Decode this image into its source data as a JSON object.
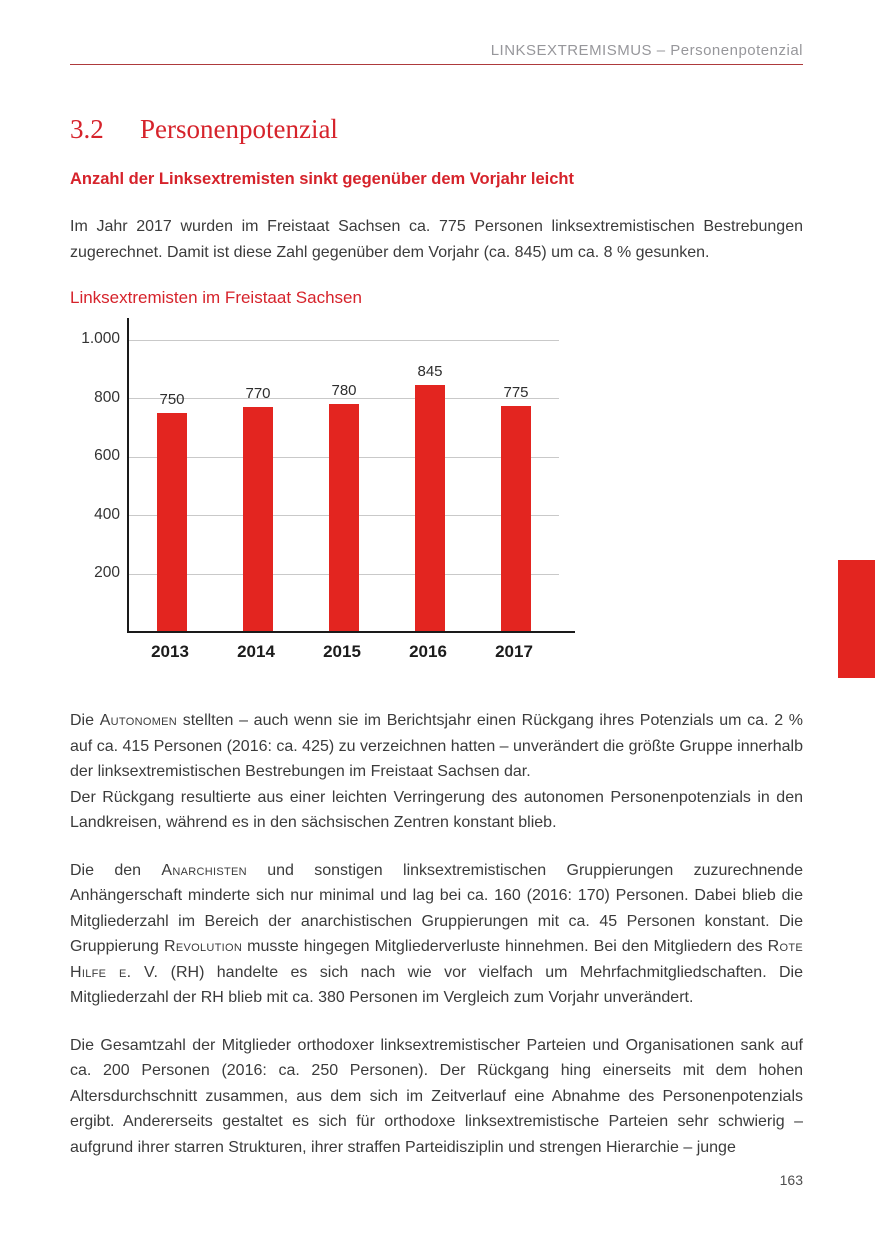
{
  "page": {
    "running_title": "LINKSEXTREMISMUS – Personenpotenzial",
    "section_number": "3.2",
    "section_title": "Personenpotenzial",
    "subheading": "Anzahl der Linksextremisten sinkt gegenüber dem Vorjahr leicht",
    "intro_paragraph": "Im Jahr 2017 wurden im Freistaat Sachsen ca. 775 Personen linksextremistischen Bestrebungen zugerechnet. Damit ist diese Zahl gegenüber dem Vorjahr (ca. 845) um ca. 8 % gesunken.",
    "page_number": "163"
  },
  "chart_data": {
    "type": "bar",
    "title": "Linksextremisten im Freistaat Sachsen",
    "categories": [
      "2013",
      "2014",
      "2015",
      "2016",
      "2017"
    ],
    "values": [
      750,
      770,
      780,
      845,
      775
    ],
    "bar_labels": [
      "750",
      "770",
      "780",
      "845",
      "775"
    ],
    "xlabel": "",
    "ylabel": "",
    "ylim": [
      0,
      1075
    ],
    "y_ticks": [
      {
        "value": 200,
        "label": "200"
      },
      {
        "value": 400,
        "label": "400"
      },
      {
        "value": 600,
        "label": "600"
      },
      {
        "value": 800,
        "label": "800"
      },
      {
        "value": 1000,
        "label": "1.000"
      }
    ],
    "grid": true,
    "legend": "none",
    "bar_color": "#e32520"
  },
  "body_blocks": [
    {
      "paragraphs": [
        [
          {
            "t": "Die "
          },
          {
            "t": "Autonomen",
            "sc": true
          },
          {
            "t": " stellten – auch wenn sie im Berichtsjahr einen Rückgang ihres Potenzials um ca. 2 % auf ca. 415 Personen (2016: ca. 425) zu verzeichnen hatten – unverändert die größte Gruppe innerhalb der linksextremistischen Bestrebungen im Freistaat Sachsen dar."
          }
        ],
        [
          {
            "t": "Der Rückgang resultierte aus einer leichten Verringerung des autonomen Personenpotenzials in den Landkreisen, während es in den sächsischen Zentren konstant blieb."
          }
        ]
      ]
    },
    {
      "paragraphs": [
        [
          {
            "t": "Die den "
          },
          {
            "t": "Anarchisten",
            "sc": true
          },
          {
            "t": " und sonstigen linksextremistischen Gruppierungen zuzurechnende Anhängerschaft minderte sich nur minimal und lag bei ca. 160 (2016: 170) Personen. Dabei blieb die Mitgliederzahl im Bereich der anarchistischen Gruppierungen mit ca. 45 Personen konstant. Die Gruppierung "
          },
          {
            "t": "Revolution",
            "sc": true
          },
          {
            "t": " musste hingegen Mitgliederverluste hinnehmen. Bei den Mitgliedern des "
          },
          {
            "t": "Rote Hilfe e. V.",
            "sc": true
          },
          {
            "t": " (RH) handelte es sich nach wie vor vielfach um Mehrfachmitgliedschaften. Die Mitgliederzahl der RH blieb mit ca. 380 Personen im Vergleich zum Vorjahr unverändert."
          }
        ]
      ]
    },
    {
      "paragraphs": [
        [
          {
            "t": "Die Gesamtzahl der Mitglieder orthodoxer linksextremistischer Parteien und Organisationen sank auf ca. 200 Personen (2016: ca. 250 Personen). Der Rückgang hing einerseits mit dem hohen Altersdurchschnitt zusammen, aus dem sich im Zeitverlauf eine Abnahme des Personenpotenzials ergibt. Andererseits gestaltet es sich für orthodoxe linksextremistische Parteien sehr schwierig – aufgrund ihrer starren Strukturen, ihrer straffen Parteidisziplin und strengen Hierarchie – junge"
          }
        ]
      ]
    }
  ],
  "colors": {
    "accent_red": "#d6232b",
    "bar_red": "#e32520",
    "rule_red": "#ae3a3c",
    "grid_gray": "#c9c9c9",
    "axis_black": "#1a1a1a",
    "header_gray": "#97979b",
    "body_text": "#3b3b3b"
  }
}
